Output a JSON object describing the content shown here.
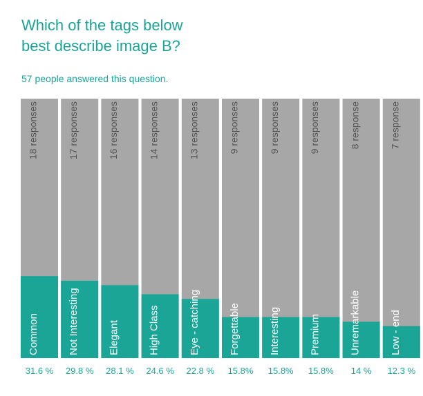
{
  "chart_data": {
    "type": "bar",
    "title": "Which of the tags below best describe image B?",
    "subtitle": "57 people answered this question.",
    "categories": [
      "Common",
      "Not Interesting",
      "Elegant",
      "High Class",
      "Eye - catching",
      "Forgettable",
      "Interesting",
      "Premium",
      "Unremarkable",
      "Low - end"
    ],
    "values": [
      31.6,
      29.8,
      28.1,
      24.6,
      22.8,
      15.8,
      15.8,
      15.8,
      14,
      12.3
    ],
    "value_labels": [
      "31.6 %",
      "29.8 %",
      "28.1 %",
      "24.6 %",
      "22.8 %",
      "15.8%",
      "15.8%",
      "15.8%",
      "14 %",
      "12.3 %"
    ],
    "response_labels": [
      "18 responses",
      "17 responses",
      "16 responses",
      "14 responses",
      "13 responses",
      "9 responses",
      "9 responses",
      "9 responses",
      "8 response",
      "7 response"
    ],
    "color": "#1aa597",
    "background_color": "#a7a7a7",
    "ylim": [
      0,
      100
    ]
  }
}
